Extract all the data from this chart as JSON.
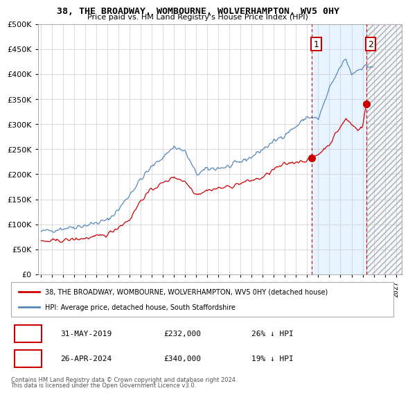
{
  "title": "38, THE BROADWAY, WOMBOURNE, WOLVERHAMPTON, WV5 0HY",
  "subtitle": "Price paid vs. HM Land Registry's House Price Index (HPI)",
  "legend_label_red": "38, THE BROADWAY, WOMBOURNE, WOLVERHAMPTON, WV5 0HY (detached house)",
  "legend_label_blue": "HPI: Average price, detached house, South Staffordshire",
  "annotation1_date": "31-MAY-2019",
  "annotation1_price": "£232,000",
  "annotation1_hpi": "26% ↓ HPI",
  "annotation2_date": "26-APR-2024",
  "annotation2_price": "£340,000",
  "annotation2_hpi": "19% ↓ HPI",
  "footnote1": "Contains HM Land Registry data © Crown copyright and database right 2024.",
  "footnote2": "This data is licensed under the Open Government Licence v3.0.",
  "ylim": [
    0,
    500000
  ],
  "yticks": [
    0,
    50000,
    100000,
    150000,
    200000,
    250000,
    300000,
    350000,
    400000,
    450000,
    500000
  ],
  "bg_color": "#ffffff",
  "grid_color": "#cccccc",
  "red_color": "#cc0000",
  "blue_color": "#5588bb",
  "vline_color": "#cc0000",
  "point1_x": 2019.42,
  "point1_y": 232000,
  "point2_x": 2024.32,
  "point2_y": 340000,
  "shade_start": 2019.42,
  "shade_end": 2024.32,
  "hatch_start": 2024.32,
  "hatch_end": 2027.5,
  "xlim_left": 1994.7,
  "xlim_right": 2027.5
}
